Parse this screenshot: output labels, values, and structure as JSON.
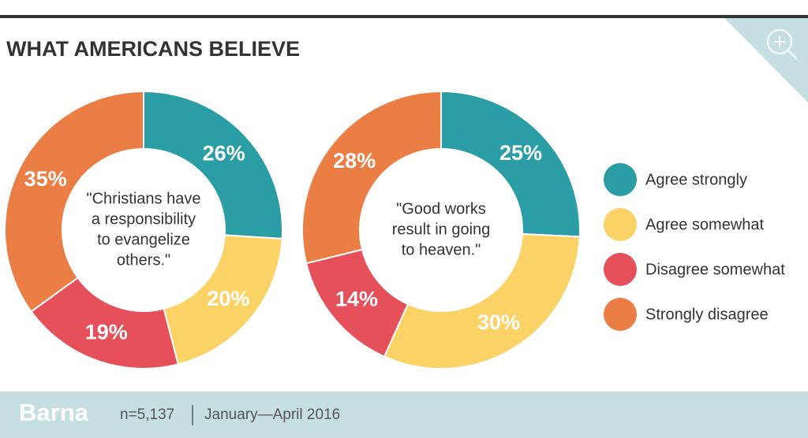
{
  "title": "WHAT AMERICANS BELIEVE",
  "chart_data": [
    {
      "type": "donut",
      "center_text": [
        "\"Christians have",
        "a responsibility",
        "to evangelize",
        "others.\""
      ],
      "categories": [
        "Agree strongly",
        "Agree somewhat",
        "Disagree somewhat",
        "Strongly disagree"
      ],
      "colors": [
        "#2a9da5",
        "#fbd266",
        "#e5505a",
        "#eb7e45"
      ],
      "values": [
        26,
        20,
        19,
        35
      ],
      "value_labels": [
        "26%",
        "20%",
        "19%",
        "35%"
      ]
    },
    {
      "type": "donut",
      "center_text": [
        "\"Good works",
        "result in going",
        "to heaven.\""
      ],
      "categories": [
        "Agree strongly",
        "Agree somewhat",
        "Disagree somewhat",
        "Strongly disagree"
      ],
      "colors": [
        "#2a9da5",
        "#fbd266",
        "#e5505a",
        "#eb7e45"
      ],
      "values": [
        25,
        30,
        14,
        28
      ],
      "value_labels": [
        "25%",
        "30%",
        "14%",
        "28%"
      ]
    }
  ],
  "footer": {
    "brand": "Barna",
    "sample": "n=5,137",
    "date": "January—April 2016"
  }
}
